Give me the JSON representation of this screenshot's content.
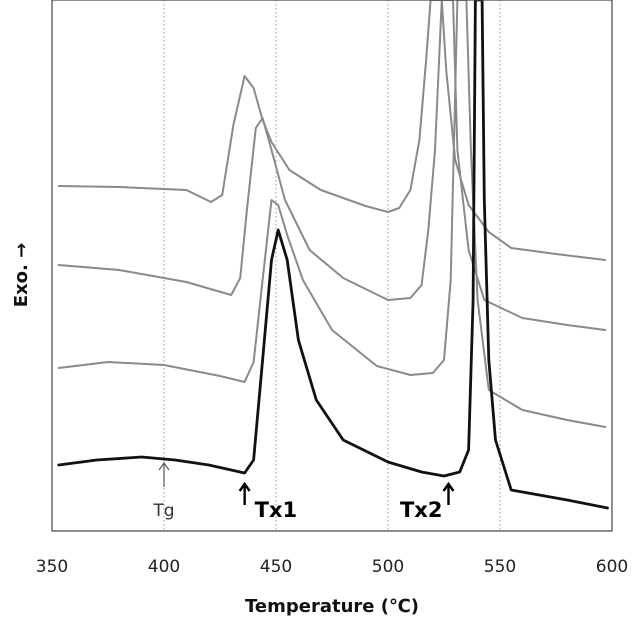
{
  "chart_data": {
    "type": "line",
    "xlabel": "Temperature (℃)",
    "ylabel": "Exo. →",
    "xlim": [
      350,
      600
    ],
    "xticks": [
      350,
      400,
      450,
      500,
      550,
      600
    ],
    "grid": "vertical dotted at 400, 450, 500, 550",
    "colors": {
      "thin": "#8a8a8a",
      "thick": "#111111"
    },
    "series": [
      {
        "style": "thin",
        "points": [
          [
            353,
            186
          ],
          [
            380,
            187
          ],
          [
            410,
            190
          ],
          [
            421,
            202
          ],
          [
            426,
            195
          ],
          [
            431,
            125
          ],
          [
            436,
            76
          ],
          [
            440,
            88
          ],
          [
            444,
            120
          ],
          [
            448,
            142
          ],
          [
            456,
            170
          ],
          [
            470,
            190
          ],
          [
            490,
            206
          ],
          [
            500,
            212
          ],
          [
            505,
            208
          ],
          [
            510,
            190
          ],
          [
            514,
            140
          ],
          [
            517,
            60
          ],
          [
            519,
            0
          ],
          [
            524,
            0
          ],
          [
            526,
            70
          ],
          [
            530,
            160
          ],
          [
            536,
            205
          ],
          [
            545,
            232
          ],
          [
            555,
            248
          ],
          [
            575,
            254
          ],
          [
            597,
            260
          ]
        ]
      },
      {
        "style": "thin",
        "points": [
          [
            353,
            265
          ],
          [
            380,
            270
          ],
          [
            410,
            282
          ],
          [
            430,
            295
          ],
          [
            434,
            278
          ],
          [
            437,
            210
          ],
          [
            441,
            128
          ],
          [
            444,
            118
          ],
          [
            448,
            150
          ],
          [
            454,
            200
          ],
          [
            465,
            250
          ],
          [
            480,
            278
          ],
          [
            500,
            300
          ],
          [
            510,
            298
          ],
          [
            515,
            285
          ],
          [
            518,
            230
          ],
          [
            521,
            150
          ],
          [
            524,
            0
          ],
          [
            529,
            0
          ],
          [
            531,
            150
          ],
          [
            536,
            250
          ],
          [
            543,
            300
          ],
          [
            560,
            318
          ],
          [
            580,
            325
          ],
          [
            597,
            330
          ]
        ]
      },
      {
        "style": "thin",
        "points": [
          [
            353,
            368
          ],
          [
            375,
            362
          ],
          [
            400,
            365
          ],
          [
            425,
            376
          ],
          [
            436,
            382
          ],
          [
            440,
            362
          ],
          [
            444,
            280
          ],
          [
            448,
            200
          ],
          [
            451,
            205
          ],
          [
            455,
            235
          ],
          [
            462,
            280
          ],
          [
            475,
            330
          ],
          [
            495,
            366
          ],
          [
            510,
            375
          ],
          [
            520,
            373
          ],
          [
            525,
            360
          ],
          [
            528,
            280
          ],
          [
            531,
            0
          ],
          [
            535,
            0
          ],
          [
            537,
            150
          ],
          [
            540,
            300
          ],
          [
            545,
            390
          ],
          [
            560,
            410
          ],
          [
            580,
            420
          ],
          [
            597,
            427
          ]
        ]
      },
      {
        "style": "thick",
        "points": [
          [
            353,
            465
          ],
          [
            370,
            460
          ],
          [
            390,
            457
          ],
          [
            405,
            460
          ],
          [
            420,
            465
          ],
          [
            436,
            473
          ],
          [
            440,
            460
          ],
          [
            444,
            360
          ],
          [
            448,
            260
          ],
          [
            451,
            230
          ],
          [
            455,
            260
          ],
          [
            460,
            340
          ],
          [
            468,
            400
          ],
          [
            480,
            440
          ],
          [
            500,
            462
          ],
          [
            515,
            472
          ],
          [
            525,
            476
          ],
          [
            532,
            472
          ],
          [
            536,
            450
          ],
          [
            538,
            300
          ],
          [
            539,
            0
          ],
          [
            542,
            0
          ],
          [
            543,
            200
          ],
          [
            545,
            360
          ],
          [
            548,
            440
          ],
          [
            555,
            490
          ],
          [
            580,
            500
          ],
          [
            598,
            508
          ]
        ]
      }
    ],
    "annotations": [
      {
        "text": "Tg",
        "x": 400,
        "style": "normal"
      },
      {
        "text": "Tx1",
        "x": 436,
        "style": "bold"
      },
      {
        "text": "Tx2",
        "x": 527,
        "style": "bold"
      }
    ]
  }
}
